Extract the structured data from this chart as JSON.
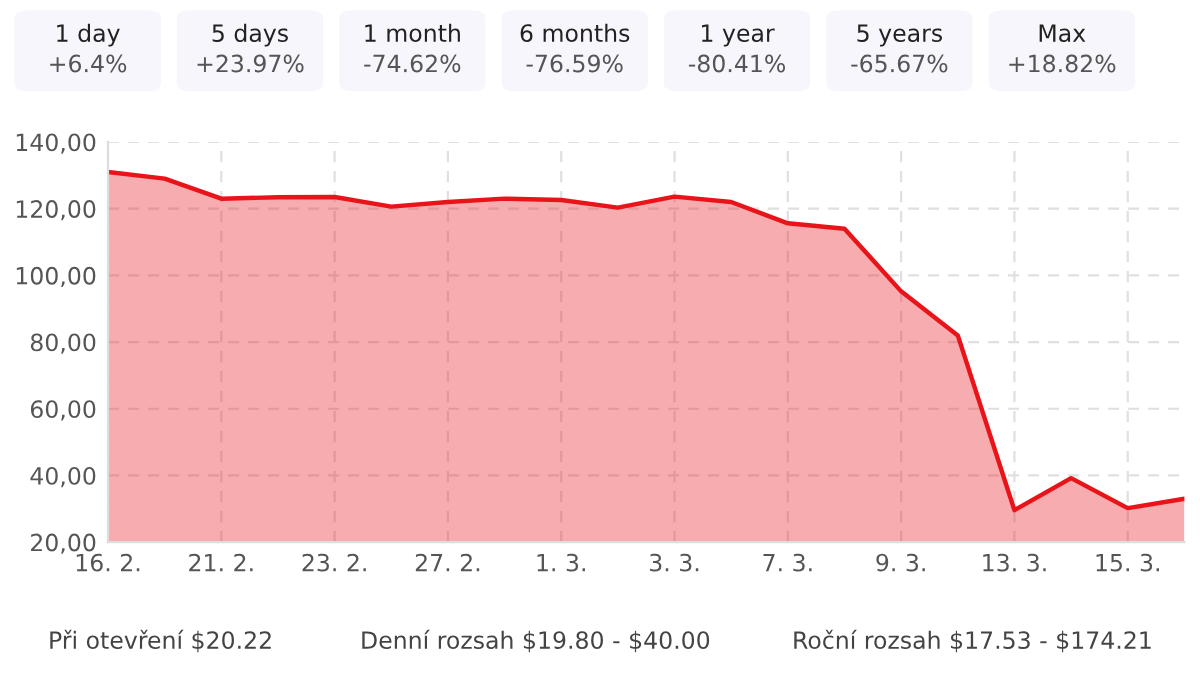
{
  "chart_data": {
    "type": "area",
    "categories": [
      "16. 2.",
      null,
      "21. 2.",
      null,
      "23. 2.",
      null,
      "27. 2.",
      null,
      "1. 3.",
      null,
      "3. 3.",
      null,
      "7. 3.",
      null,
      "9. 3.",
      null,
      "13. 3.",
      null,
      "15. 3.",
      null
    ],
    "series": [
      {
        "color": "#e8141a",
        "values": [
          131,
          129,
          123,
          123.4,
          123.5,
          120.6,
          122,
          123,
          122.6,
          120.3,
          123.6,
          122,
          115.6,
          114,
          95.2,
          82,
          29.6,
          39.2,
          30.2,
          33
        ]
      }
    ],
    "ylim": [
      20,
      140
    ],
    "yticks": [
      {
        "value": 20,
        "label": "20,00"
      },
      {
        "value": 40,
        "label": "40,00"
      },
      {
        "value": 60,
        "label": "60,00"
      },
      {
        "value": 80,
        "label": "80,00"
      },
      {
        "value": 100,
        "label": "100,00"
      },
      {
        "value": 120,
        "label": "120,00"
      },
      {
        "value": 140,
        "label": "140,00"
      }
    ],
    "grid": true,
    "line_style": "solid",
    "annotations": [
      "1 day",
      "+6.4%",
      "5 days",
      "+23.97%",
      "1 month",
      "-74.62%",
      "6 months",
      "-76.59%",
      "1 year",
      "-80.41%",
      "5 years",
      "-65.67%",
      "Max",
      "+18.82%",
      "Při otevření $20.22",
      "Denní rozsah $19.80 - $40.00",
      "Roční rozsah $17.53 - $174.21"
    ]
  }
}
